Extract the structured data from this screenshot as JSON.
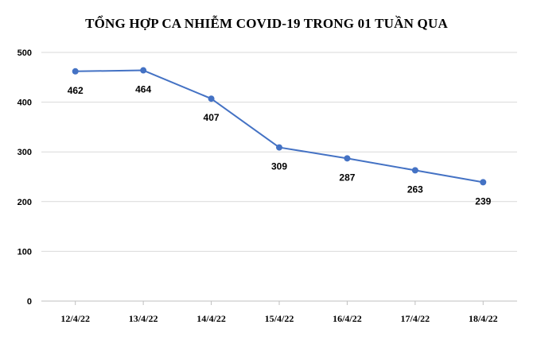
{
  "chart_data": {
    "type": "line",
    "title": "TỔNG HỢP CA NHIỄM COVID-19 TRONG 01 TUẦN QUA",
    "categories": [
      "12/4/22",
      "13/4/22",
      "14/4/22",
      "15/4/22",
      "16/4/22",
      "17/4/22",
      "18/4/22"
    ],
    "series": [
      {
        "values": [
          462,
          464,
          407,
          309,
          287,
          263,
          239
        ],
        "color": "#4472c4"
      }
    ],
    "yticks": [
      0,
      100,
      200,
      300,
      400,
      500
    ],
    "ylim": [
      0,
      500
    ],
    "grid": true,
    "data_labels": true
  }
}
